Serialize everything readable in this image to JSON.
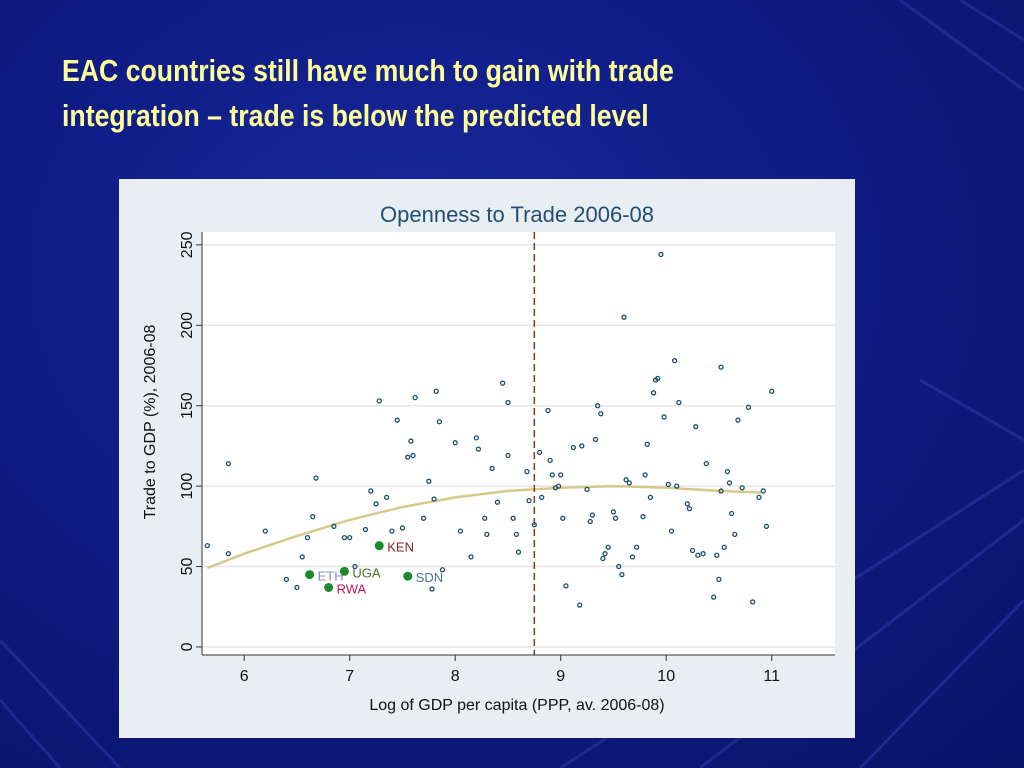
{
  "slide": {
    "title_line1": "EAC countries still have much to gain with trade",
    "title_line2": "integration – trade is below the predicted level"
  },
  "colors": {
    "background": "#0f1c86",
    "title": "#ffff99",
    "panel": "#e8eef2",
    "plot_area": "#ffffff",
    "points": "#1b4f72",
    "highlight_points": "#1e8a2e",
    "fit_line": "#d8c98a",
    "threshold_line": "#8b3a0e",
    "chart_title": "#1f4e79"
  },
  "chart_data": {
    "type": "scatter",
    "title": "Openness to Trade 2006-08",
    "xlabel": "Log of GDP per capita (PPP, av. 2006-08)",
    "ylabel": "Trade to GDP (%), 2006-08",
    "xlim": [
      5.6,
      11.6
    ],
    "ylim": [
      -5,
      258
    ],
    "xticks": [
      6,
      7,
      8,
      9,
      10,
      11
    ],
    "yticks": [
      0,
      50,
      100,
      150,
      200,
      250
    ],
    "grid": "horizontal",
    "vertical_line_x": 8.75,
    "fit_line": {
      "type": "quadratic",
      "x": [
        5.65,
        6.0,
        6.5,
        7.0,
        7.5,
        8.0,
        8.5,
        9.0,
        9.5,
        10.0,
        10.5,
        10.9
      ],
      "y": [
        49,
        58,
        69,
        79,
        87,
        93,
        97,
        99,
        100,
        99,
        97,
        96
      ]
    },
    "highlighted": [
      {
        "label": "KEN",
        "x": 7.28,
        "y": 63,
        "label_color": "#8b2020"
      },
      {
        "label": "ETH",
        "x": 6.62,
        "y": 45,
        "label_color": "#8888cc"
      },
      {
        "label": "UGA",
        "x": 6.95,
        "y": 47,
        "label_color": "#556b2f"
      },
      {
        "label": "RWA",
        "x": 6.8,
        "y": 37,
        "label_color": "#c0185a"
      },
      {
        "label": "SDN",
        "x": 7.55,
        "y": 44,
        "label_color": "#4a7a8a"
      }
    ],
    "points": [
      [
        5.65,
        63
      ],
      [
        5.85,
        114
      ],
      [
        5.85,
        58
      ],
      [
        6.2,
        72
      ],
      [
        6.4,
        42
      ],
      [
        6.5,
        37
      ],
      [
        6.55,
        56
      ],
      [
        6.6,
        68
      ],
      [
        6.65,
        81
      ],
      [
        6.68,
        105
      ],
      [
        6.85,
        75
      ],
      [
        6.95,
        68
      ],
      [
        7.0,
        68
      ],
      [
        7.05,
        50
      ],
      [
        7.15,
        73
      ],
      [
        7.2,
        97
      ],
      [
        7.25,
        89
      ],
      [
        7.28,
        153
      ],
      [
        7.35,
        93
      ],
      [
        7.4,
        72
      ],
      [
        7.45,
        141
      ],
      [
        7.5,
        74
      ],
      [
        7.55,
        118
      ],
      [
        7.58,
        128
      ],
      [
        7.6,
        119
      ],
      [
        7.62,
        155
      ],
      [
        7.7,
        80
      ],
      [
        7.75,
        103
      ],
      [
        7.78,
        36
      ],
      [
        7.8,
        92
      ],
      [
        7.82,
        159
      ],
      [
        7.85,
        140
      ],
      [
        7.88,
        48
      ],
      [
        8.0,
        127
      ],
      [
        8.05,
        72
      ],
      [
        8.15,
        56
      ],
      [
        8.2,
        130
      ],
      [
        8.22,
        123
      ],
      [
        8.28,
        80
      ],
      [
        8.3,
        70
      ],
      [
        8.35,
        111
      ],
      [
        8.4,
        90
      ],
      [
        8.45,
        164
      ],
      [
        8.5,
        152
      ],
      [
        8.5,
        119
      ],
      [
        8.55,
        80
      ],
      [
        8.58,
        70
      ],
      [
        8.6,
        59
      ],
      [
        8.68,
        109
      ],
      [
        8.7,
        91
      ],
      [
        8.75,
        76
      ],
      [
        8.8,
        121
      ],
      [
        8.82,
        93
      ],
      [
        8.88,
        147
      ],
      [
        8.9,
        116
      ],
      [
        8.92,
        107
      ],
      [
        8.95,
        99
      ],
      [
        8.98,
        100
      ],
      [
        9.0,
        107
      ],
      [
        9.02,
        80
      ],
      [
        9.05,
        38
      ],
      [
        9.12,
        124
      ],
      [
        9.18,
        26
      ],
      [
        9.2,
        125
      ],
      [
        9.25,
        98
      ],
      [
        9.28,
        78
      ],
      [
        9.3,
        82
      ],
      [
        9.33,
        129
      ],
      [
        9.35,
        150
      ],
      [
        9.38,
        145
      ],
      [
        9.4,
        55
      ],
      [
        9.42,
        58
      ],
      [
        9.45,
        62
      ],
      [
        9.5,
        84
      ],
      [
        9.52,
        80
      ],
      [
        9.55,
        50
      ],
      [
        9.58,
        45
      ],
      [
        9.6,
        205
      ],
      [
        9.62,
        104
      ],
      [
        9.65,
        102
      ],
      [
        9.68,
        56
      ],
      [
        9.72,
        62
      ],
      [
        9.78,
        81
      ],
      [
        9.8,
        107
      ],
      [
        9.82,
        126
      ],
      [
        9.85,
        93
      ],
      [
        9.88,
        158
      ],
      [
        9.9,
        166
      ],
      [
        9.92,
        167
      ],
      [
        9.95,
        244
      ],
      [
        9.98,
        143
      ],
      [
        10.02,
        101
      ],
      [
        10.05,
        72
      ],
      [
        10.08,
        178
      ],
      [
        10.1,
        100
      ],
      [
        10.12,
        152
      ],
      [
        10.2,
        89
      ],
      [
        10.22,
        86
      ],
      [
        10.25,
        60
      ],
      [
        10.28,
        137
      ],
      [
        10.3,
        57
      ],
      [
        10.35,
        58
      ],
      [
        10.38,
        114
      ],
      [
        10.45,
        31
      ],
      [
        10.48,
        57
      ],
      [
        10.5,
        42
      ],
      [
        10.52,
        174
      ],
      [
        10.52,
        97
      ],
      [
        10.55,
        62
      ],
      [
        10.58,
        109
      ],
      [
        10.6,
        102
      ],
      [
        10.62,
        83
      ],
      [
        10.65,
        70
      ],
      [
        10.68,
        141
      ],
      [
        10.72,
        99
      ],
      [
        10.78,
        149
      ],
      [
        10.82,
        28
      ],
      [
        10.88,
        93
      ],
      [
        10.92,
        97
      ],
      [
        10.95,
        75
      ],
      [
        11.0,
        159
      ]
    ]
  }
}
